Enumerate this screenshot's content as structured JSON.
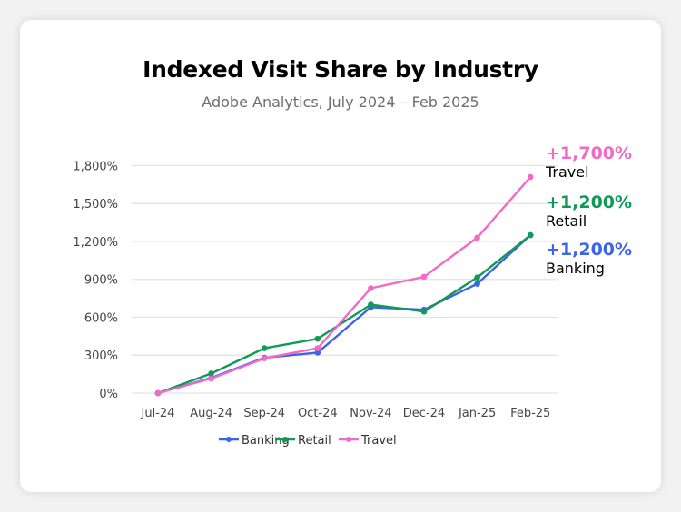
{
  "header": {
    "title": "Indexed Visit Share by Industry",
    "subtitle": "Adobe Analytics, July 2024 – Feb 2025"
  },
  "annotations": [
    {
      "value": "+1,700%",
      "label": "Travel",
      "color": "#f06ac6"
    },
    {
      "value": "+1,200%",
      "label": "Retail",
      "color": "#0f9a55"
    },
    {
      "value": "+1,200%",
      "label": "Banking",
      "color": "#3d63e8"
    }
  ],
  "legend": [
    {
      "label": "Banking",
      "color": "#3d63e8"
    },
    {
      "label": "Retail",
      "color": "#0f9a55"
    },
    {
      "label": "Travel",
      "color": "#f06ac6"
    }
  ],
  "chart_data": {
    "type": "line",
    "title": "Indexed Visit Share by Industry",
    "subtitle": "Adobe Analytics, July 2024 – Feb 2025",
    "xlabel": "",
    "ylabel": "",
    "categories": [
      "Jul-24",
      "Aug-24",
      "Sep-24",
      "Oct-24",
      "Nov-24",
      "Dec-24",
      "Jan-25",
      "Feb-25"
    ],
    "yticks": [
      "0%",
      "300%",
      "600%",
      "900%",
      "1,200%",
      "1,500%",
      "1,800%"
    ],
    "ylim": [
      0,
      1800
    ],
    "grid": true,
    "legend_position": "bottom",
    "series": [
      {
        "name": "Banking",
        "color": "#3d63e8",
        "values": [
          0,
          120,
          280,
          320,
          680,
          660,
          865,
          1250
        ]
      },
      {
        "name": "Retail",
        "color": "#0f9a55",
        "values": [
          0,
          155,
          355,
          430,
          700,
          645,
          915,
          1250
        ]
      },
      {
        "name": "Travel",
        "color": "#f06ac6",
        "values": [
          0,
          115,
          275,
          355,
          830,
          920,
          1230,
          1710
        ]
      }
    ]
  }
}
